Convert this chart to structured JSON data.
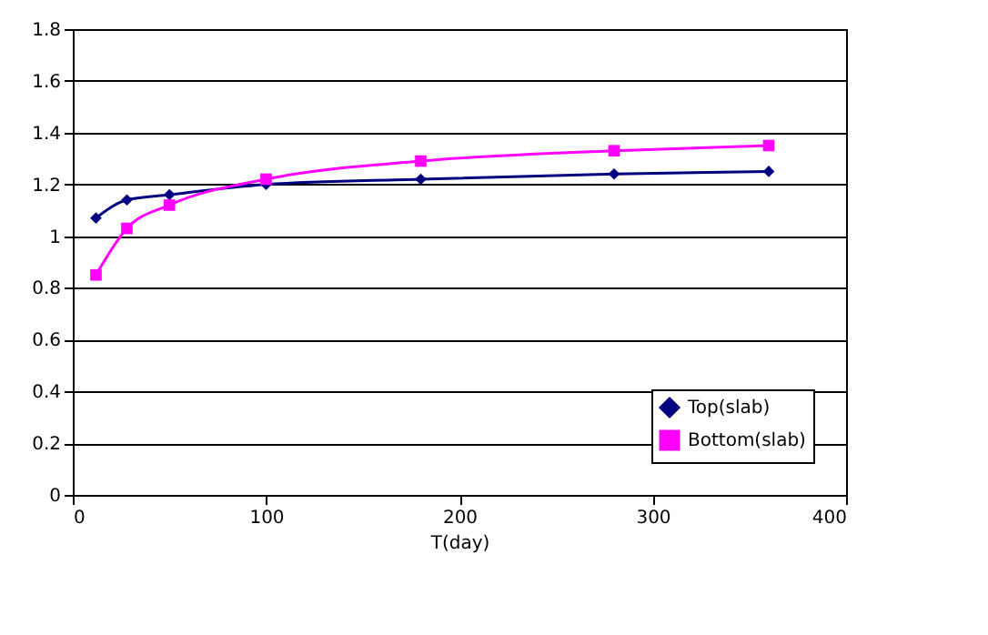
{
  "chart_data": {
    "type": "line",
    "xlabel": "T(day)",
    "xlim": [
      0,
      400
    ],
    "xticks": [
      0,
      100,
      200,
      300,
      400
    ],
    "ylim": [
      0,
      1.8
    ],
    "yticks": [
      0,
      0.2,
      0.4,
      0.6,
      0.8,
      1,
      1.2,
      1.4,
      1.6,
      1.8
    ],
    "grid": "y",
    "legend": "bottom right",
    "line_style": "solid",
    "series": [
      {
        "name": "Top(slab)",
        "color": "#000080",
        "marker": "diamond",
        "x": [
          12,
          28,
          50,
          100,
          180,
          280,
          360
        ],
        "values": [
          1.07,
          1.14,
          1.16,
          1.2,
          1.22,
          1.24,
          1.25
        ]
      },
      {
        "name": "Bottom(slab)",
        "color": "#ff00ff",
        "marker": "square",
        "x": [
          12,
          28,
          50,
          100,
          180,
          280,
          360
        ],
        "values": [
          0.85,
          1.03,
          1.12,
          1.22,
          1.29,
          1.33,
          1.35
        ]
      }
    ]
  }
}
